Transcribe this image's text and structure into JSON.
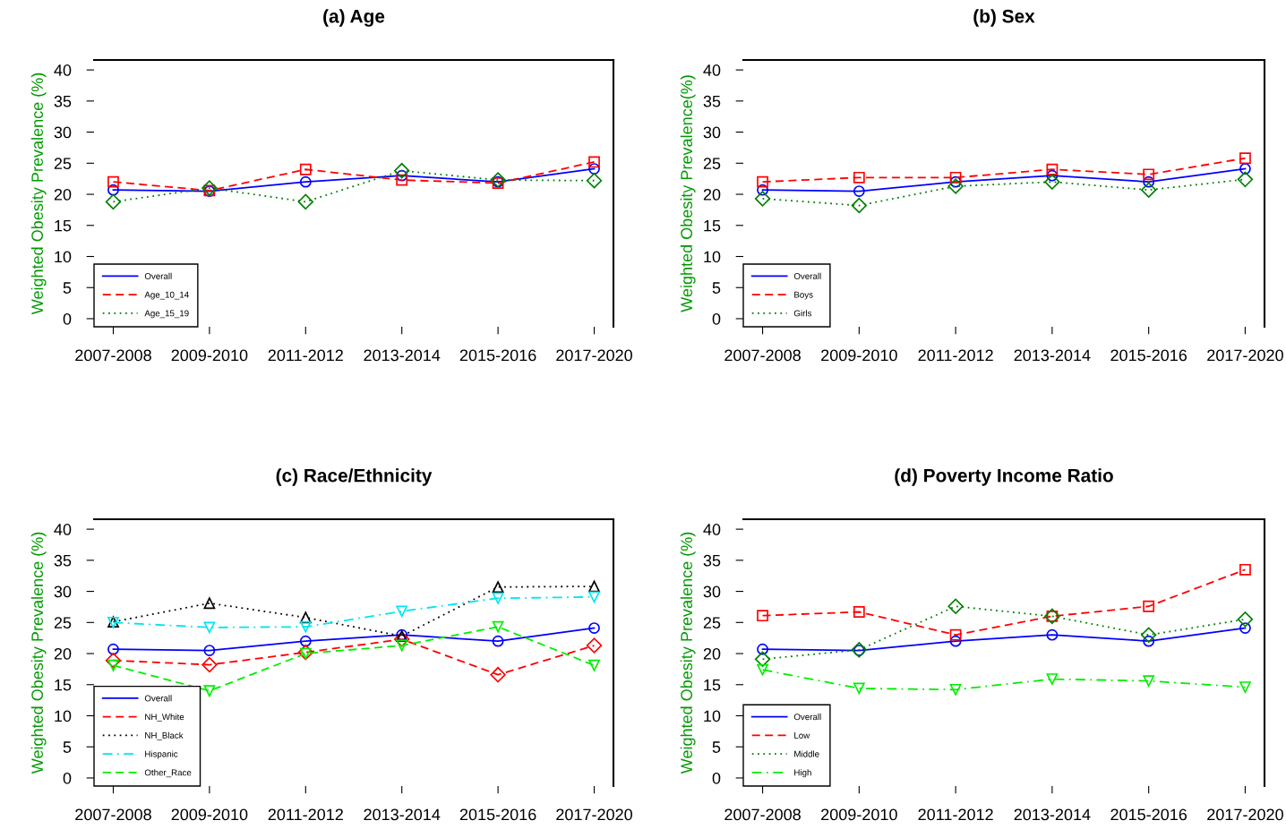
{
  "chart_data": [
    {
      "type": "line",
      "title": "(a) Age",
      "ylabel": "Weighted Obesity Prevalence (%)",
      "categories": [
        "2007-2008",
        "2009-2010",
        "2011-2012",
        "2013-2014",
        "2015-2016",
        "2017-2020"
      ],
      "ylim": [
        -1.3,
        41.6
      ],
      "yticks": [
        0,
        5,
        10,
        15,
        20,
        25,
        30,
        35,
        40
      ],
      "legend": "bottom left",
      "grid": false,
      "series": [
        {
          "name": "Overall",
          "color": "#0000ff",
          "line_style": "solid",
          "marker": "circle",
          "values": [
            20.7,
            20.5,
            22.0,
            23.0,
            22.0,
            24.1
          ]
        },
        {
          "name": "Age_10_14",
          "color": "#ff0000",
          "line_style": "dashed",
          "marker": "square",
          "values": [
            22.0,
            20.6,
            24.0,
            22.3,
            21.8,
            25.2
          ]
        },
        {
          "name": "Age_15_19",
          "color": "#008000",
          "line_style": "dotted",
          "marker": "diamond",
          "values": [
            18.8,
            21.0,
            18.8,
            23.8,
            22.3,
            22.2
          ]
        }
      ]
    },
    {
      "type": "line",
      "title": "(b) Sex",
      "ylabel": "Weighted Obesity Prevalence(%)",
      "categories": [
        "2007-2008",
        "2009-2010",
        "2011-2012",
        "2013-2014",
        "2015-2016",
        "2017-2020"
      ],
      "ylim": [
        -1.3,
        41.6
      ],
      "yticks": [
        0,
        5,
        10,
        15,
        20,
        25,
        30,
        35,
        40
      ],
      "legend": "bottom left",
      "grid": false,
      "series": [
        {
          "name": "Overall",
          "color": "#0000ff",
          "line_style": "solid",
          "marker": "circle",
          "values": [
            20.7,
            20.5,
            22.0,
            23.0,
            22.0,
            24.1
          ]
        },
        {
          "name": "Boys",
          "color": "#ff0000",
          "line_style": "dashed",
          "marker": "square",
          "values": [
            22.0,
            22.7,
            22.7,
            24.0,
            23.2,
            25.8
          ]
        },
        {
          "name": "Girls",
          "color": "#008000",
          "line_style": "dotted",
          "marker": "diamond",
          "values": [
            19.3,
            18.2,
            21.3,
            22.0,
            20.7,
            22.4
          ]
        }
      ]
    },
    {
      "type": "line",
      "title": "(c) Race/Ethnicity",
      "ylabel": "Weighted Obesity Prevalence (%)",
      "categories": [
        "2007-2008",
        "2009-2010",
        "2011-2012",
        "2013-2014",
        "2015-2016",
        "2017-2020"
      ],
      "ylim": [
        -1.3,
        41.6
      ],
      "yticks": [
        0,
        5,
        10,
        15,
        20,
        25,
        30,
        35,
        40
      ],
      "legend": "bottom left",
      "grid": false,
      "series": [
        {
          "name": "Overall",
          "color": "#0000ff",
          "line_style": "solid",
          "marker": "circle",
          "values": [
            20.7,
            20.5,
            22.0,
            23.0,
            22.0,
            24.1
          ]
        },
        {
          "name": "NH_White",
          "color": "#ff0000",
          "line_style": "dashed",
          "marker": "diamond",
          "values": [
            18.9,
            18.2,
            20.2,
            22.3,
            16.6,
            21.3
          ]
        },
        {
          "name": "NH_Black",
          "color": "#000000",
          "line_style": "dotted",
          "marker": "triangle",
          "values": [
            25.1,
            28.1,
            25.8,
            22.8,
            30.7,
            30.8
          ]
        },
        {
          "name": "Hispanic",
          "color": "#00e5ee",
          "line_style": "dashdot",
          "marker": "triangle_down",
          "values": [
            25.0,
            24.2,
            24.3,
            26.8,
            28.9,
            29.1
          ]
        },
        {
          "name": "Other_Race",
          "color": "#00ee00",
          "line_style": "dashed",
          "marker": "triangle_down",
          "values": [
            18.1,
            14.0,
            20.0,
            21.3,
            24.3,
            18.1
          ]
        }
      ]
    },
    {
      "type": "line",
      "title": "(d) Poverty Income Ratio",
      "ylabel": "Weighted Obesity Prevalence (%)",
      "categories": [
        "2007-2008",
        "2009-2010",
        "2011-2012",
        "2013-2014",
        "2015-2016",
        "2017-2020"
      ],
      "ylim": [
        -1.3,
        41.6
      ],
      "yticks": [
        0,
        5,
        10,
        15,
        20,
        25,
        30,
        35,
        40
      ],
      "legend": "bottom left",
      "grid": false,
      "series": [
        {
          "name": "Overall",
          "color": "#0000ff",
          "line_style": "solid",
          "marker": "circle",
          "values": [
            20.7,
            20.5,
            22.0,
            23.0,
            22.0,
            24.1
          ]
        },
        {
          "name": "Low",
          "color": "#ff0000",
          "line_style": "dashed",
          "marker": "square",
          "values": [
            26.1,
            26.7,
            23.0,
            26.0,
            27.6,
            33.5
          ]
        },
        {
          "name": "Middle",
          "color": "#008000",
          "line_style": "dotted",
          "marker": "diamond",
          "values": [
            19.1,
            20.6,
            27.6,
            26.0,
            23.0,
            25.5
          ]
        },
        {
          "name": "High",
          "color": "#00ee00",
          "line_style": "dashdot",
          "marker": "triangle_down",
          "values": [
            17.4,
            14.4,
            14.2,
            15.9,
            15.6,
            14.6
          ]
        }
      ]
    }
  ]
}
